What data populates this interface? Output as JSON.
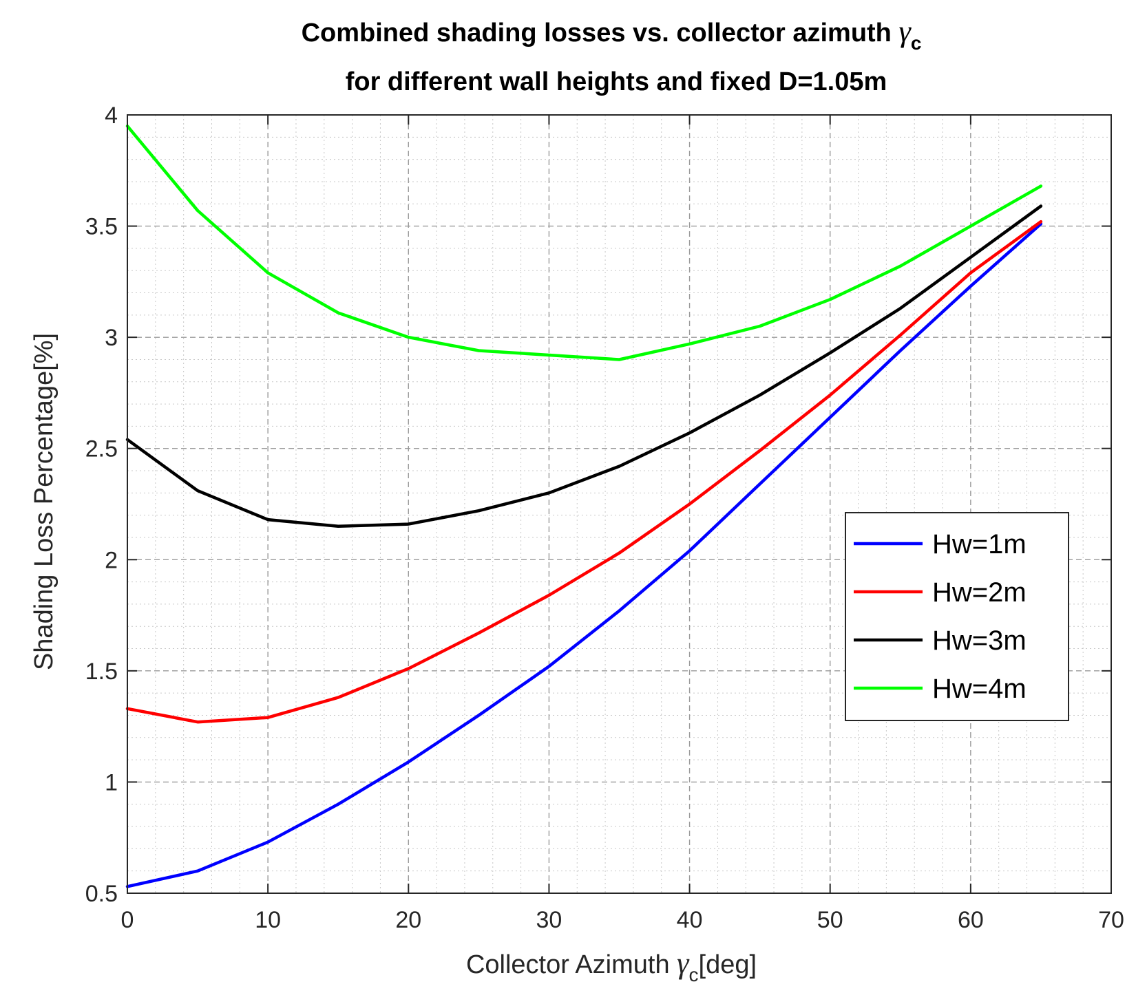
{
  "chart_data": {
    "type": "line",
    "title_line1": "Combined shading losses vs. collector azimuth",
    "title_line2": "for different wall heights and fixed D=1.05m",
    "title_symbol": "γ",
    "title_symbol_sub": "c",
    "xlabel_prefix": "Collector Azimuth",
    "xlabel_symbol": "γ",
    "xlabel_symbol_sub": "c",
    "xlabel_suffix": "[deg]",
    "ylabel": "Shading Loss Percentage[%]",
    "xlim": [
      0,
      70
    ],
    "ylim": [
      0.5,
      4
    ],
    "xticks": [
      "0",
      "10",
      "20",
      "30",
      "40",
      "50",
      "60",
      "70"
    ],
    "yticks": [
      "0.5",
      "1",
      "1.5",
      "2",
      "2.5",
      "3",
      "3.5",
      "4"
    ],
    "grid": true,
    "minor_grid": true,
    "legend_position": "right",
    "x": [
      0,
      5,
      10,
      15,
      20,
      25,
      30,
      35,
      40,
      45,
      50,
      55,
      60,
      65
    ],
    "series": [
      {
        "name": "Hw=1m",
        "color": "#0000ff",
        "values": [
          0.53,
          0.6,
          0.73,
          0.9,
          1.09,
          1.3,
          1.52,
          1.77,
          2.04,
          2.34,
          2.64,
          2.94,
          3.23,
          3.51
        ]
      },
      {
        "name": "Hw=2m",
        "color": "#ff0000",
        "values": [
          1.33,
          1.27,
          1.29,
          1.38,
          1.51,
          1.67,
          1.84,
          2.03,
          2.25,
          2.49,
          2.74,
          3.01,
          3.29,
          3.52
        ]
      },
      {
        "name": "Hw=3m",
        "color": "#000000",
        "values": [
          2.54,
          2.31,
          2.18,
          2.15,
          2.16,
          2.22,
          2.3,
          2.42,
          2.57,
          2.74,
          2.93,
          3.13,
          3.36,
          3.59
        ]
      },
      {
        "name": "Hw=4m",
        "color": "#00ff00",
        "values": [
          3.95,
          3.57,
          3.29,
          3.11,
          3.0,
          2.94,
          2.92,
          2.9,
          2.97,
          3.05,
          3.17,
          3.32,
          3.5,
          3.68
        ]
      }
    ]
  }
}
